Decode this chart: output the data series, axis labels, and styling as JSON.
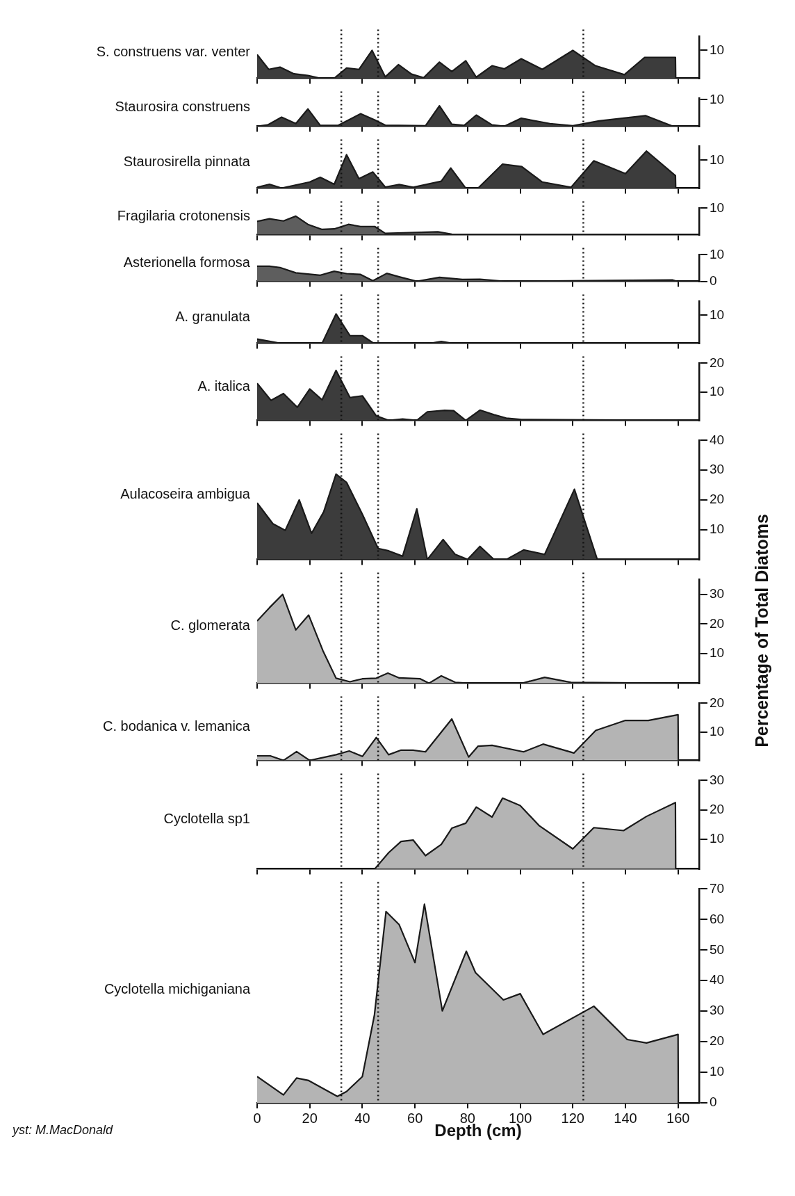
{
  "chart_data": [
    {
      "type": "area",
      "title": "S. construens var. venter",
      "x": [
        0,
        4.4,
        8.7,
        14,
        19.3,
        24,
        29.3,
        34,
        38.7,
        43.7,
        48.7,
        53.7,
        58.7,
        63.3,
        69.3,
        74,
        79.3,
        83.3,
        89.3,
        94,
        100.4,
        108.4,
        120,
        128.6,
        139.6,
        147.3,
        159,
        159.1
      ],
      "values": [
        8.5,
        3.2,
        4,
        1.6,
        1,
        0,
        0,
        3.7,
        3.2,
        10,
        0.5,
        4.9,
        1.5,
        0.2,
        5.8,
        2.4,
        6.3,
        0.4,
        4.5,
        3.4,
        7,
        3.2,
        10,
        4.5,
        1.3,
        7.5,
        7.5,
        0
      ],
      "color": "#3c3c3c",
      "xlim": [
        0,
        168
      ],
      "xticks": [
        {
          "value": 0,
          "label": null
        },
        {
          "value": 20,
          "label": null
        },
        {
          "value": 40,
          "label": null
        },
        {
          "value": 60,
          "label": null
        },
        {
          "value": 80,
          "label": null
        },
        {
          "value": 100,
          "label": null
        },
        {
          "value": 120,
          "label": null
        },
        {
          "value": 140,
          "label": null
        },
        {
          "value": 160,
          "label": null
        }
      ],
      "ylim": [
        0,
        15
      ],
      "yticks": [
        10
      ],
      "tick_labels": "y",
      "ref_lines": [
        {
          "axis": "x",
          "value": 32,
          "line_style": "dotted"
        },
        {
          "axis": "x",
          "value": 46,
          "line_style": "dotted"
        },
        {
          "axis": "x",
          "value": 124,
          "line_style": "dotted"
        }
      ]
    },
    {
      "type": "area",
      "title": "Staurosira construens",
      "x": [
        0,
        4,
        9.3,
        14.7,
        19.3,
        24,
        30.7,
        39.3,
        44.7,
        48.7,
        64,
        69.3,
        74,
        78.7,
        83.3,
        89.3,
        94,
        100.4,
        111.3,
        120,
        130,
        147.6,
        158,
        160
      ],
      "values": [
        0,
        0.5,
        3.4,
        1,
        6.5,
        0.3,
        0.3,
        4.7,
        2.4,
        0.4,
        0.2,
        7.7,
        0.8,
        0.3,
        4.2,
        0.5,
        0,
        3,
        1,
        0.2,
        2,
        4,
        0,
        0
      ],
      "color": "#3c3c3c",
      "xlim": [
        0,
        168
      ],
      "xticks": [
        {
          "value": 0,
          "label": null
        },
        {
          "value": 20,
          "label": null
        },
        {
          "value": 40,
          "label": null
        },
        {
          "value": 60,
          "label": null
        },
        {
          "value": 80,
          "label": null
        },
        {
          "value": 100,
          "label": null
        },
        {
          "value": 120,
          "label": null
        },
        {
          "value": 140,
          "label": null
        },
        {
          "value": 160,
          "label": null
        }
      ],
      "ylim": [
        0,
        10.5
      ],
      "yticks": [
        10
      ],
      "tick_labels": "y",
      "ref_lines": [
        {
          "axis": "x",
          "value": 32,
          "line_style": "dotted"
        },
        {
          "axis": "x",
          "value": 46,
          "line_style": "dotted"
        },
        {
          "axis": "x",
          "value": 124,
          "line_style": "dotted"
        }
      ]
    },
    {
      "type": "area",
      "title": "Staurosirella pinnata",
      "x": [
        0,
        4.7,
        9.3,
        20,
        24,
        29.3,
        34,
        38.7,
        44,
        48.7,
        54,
        59.3,
        70,
        73.6,
        79.3,
        84,
        93.3,
        100.6,
        108.4,
        119.3,
        128,
        140,
        148,
        159,
        159.1
      ],
      "values": [
        0.3,
        1.4,
        0,
        2.2,
        3.9,
        1.4,
        12,
        3.4,
        5.8,
        0.4,
        1.3,
        0.3,
        2.5,
        7.2,
        0,
        0,
        8.6,
        7.7,
        2.2,
        0.3,
        9.8,
        5.2,
        13.3,
        4.5,
        0
      ],
      "color": "#3c3c3c",
      "xlim": [
        0,
        168
      ],
      "xticks": [
        {
          "value": 0,
          "label": null
        },
        {
          "value": 20,
          "label": null
        },
        {
          "value": 40,
          "label": null
        },
        {
          "value": 60,
          "label": null
        },
        {
          "value": 80,
          "label": null
        },
        {
          "value": 100,
          "label": null
        },
        {
          "value": 120,
          "label": null
        },
        {
          "value": 140,
          "label": null
        },
        {
          "value": 160,
          "label": null
        }
      ],
      "ylim": [
        0,
        15
      ],
      "yticks": [
        10
      ],
      "tick_labels": "y",
      "ref_lines": [
        {
          "axis": "x",
          "value": 32,
          "line_style": "dotted"
        },
        {
          "axis": "x",
          "value": 46,
          "line_style": "dotted"
        },
        {
          "axis": "x",
          "value": 124,
          "line_style": "dotted"
        }
      ]
    },
    {
      "type": "area",
      "title": "Fragilaria crotonensis",
      "x": [
        0,
        4.7,
        10,
        14.7,
        19.3,
        24.7,
        29.3,
        34.7,
        39.3,
        44.7,
        48.7,
        58,
        68.7,
        74,
        160
      ],
      "values": [
        5,
        6,
        5.2,
        7,
        3.9,
        2,
        2.2,
        3.9,
        3.1,
        3.1,
        0.5,
        0.8,
        1.1,
        0.2,
        0
      ],
      "color": "#5e5e5e",
      "xlim": [
        0,
        168
      ],
      "xticks": [
        {
          "value": 0,
          "label": null
        },
        {
          "value": 20,
          "label": null
        },
        {
          "value": 40,
          "label": null
        },
        {
          "value": 60,
          "label": null
        },
        {
          "value": 80,
          "label": null
        },
        {
          "value": 100,
          "label": null
        },
        {
          "value": 120,
          "label": null
        },
        {
          "value": 140,
          "label": null
        },
        {
          "value": 160,
          "label": null
        }
      ],
      "ylim": [
        0,
        10
      ],
      "yticks": [
        10
      ],
      "tick_labels": "y",
      "ref_lines": [
        {
          "axis": "x",
          "value": 32,
          "line_style": "dotted"
        },
        {
          "axis": "x",
          "value": 46,
          "line_style": "dotted"
        },
        {
          "axis": "x",
          "value": 124,
          "line_style": "dotted"
        }
      ]
    },
    {
      "type": "area",
      "title": "Asterionella formosa",
      "x": [
        0,
        4.7,
        8.7,
        14.7,
        24,
        29.3,
        34,
        39.3,
        44,
        49.3,
        54,
        60.7,
        69.3,
        78,
        84.7,
        94,
        158,
        159.6
      ],
      "values": [
        5.7,
        5.7,
        5.2,
        3.2,
        2.3,
        3.8,
        2.9,
        2.6,
        0.2,
        3,
        1.7,
        0,
        1.5,
        0.7,
        0.8,
        0,
        0.5,
        0
      ],
      "color": "#5e5e5e",
      "xlim": [
        0,
        168
      ],
      "xticks": [
        {
          "value": 0,
          "label": null
        },
        {
          "value": 20,
          "label": null
        },
        {
          "value": 40,
          "label": null
        },
        {
          "value": 60,
          "label": null
        },
        {
          "value": 80,
          "label": null
        },
        {
          "value": 100,
          "label": null
        },
        {
          "value": 120,
          "label": null
        },
        {
          "value": 140,
          "label": null
        },
        {
          "value": 160,
          "label": null
        }
      ],
      "ylim": [
        0,
        10
      ],
      "yticks": [
        0,
        10
      ],
      "tick_labels": "y",
      "ref_lines": [
        {
          "axis": "x",
          "value": 32,
          "line_style": "dotted"
        },
        {
          "axis": "x",
          "value": 46,
          "line_style": "dotted"
        },
        {
          "axis": "x",
          "value": 124,
          "line_style": "dotted"
        }
      ]
    },
    {
      "type": "area",
      "title": "A. granulata",
      "x": [
        0,
        8.7,
        24.7,
        30,
        35.3,
        40,
        44,
        66,
        70,
        74,
        160
      ],
      "values": [
        1.5,
        0,
        0,
        10.5,
        2.7,
        2.7,
        0.2,
        0,
        0.6,
        0,
        0
      ],
      "color": "#3c3c3c",
      "xlim": [
        0,
        168
      ],
      "xticks": [
        {
          "value": 0,
          "label": null
        },
        {
          "value": 20,
          "label": null
        },
        {
          "value": 40,
          "label": null
        },
        {
          "value": 60,
          "label": null
        },
        {
          "value": 80,
          "label": null
        },
        {
          "value": 100,
          "label": null
        },
        {
          "value": 120,
          "label": null
        },
        {
          "value": 140,
          "label": null
        },
        {
          "value": 160,
          "label": null
        }
      ],
      "ylim": [
        0,
        15
      ],
      "yticks": [
        10
      ],
      "tick_labels": "y",
      "ref_lines": [
        {
          "axis": "x",
          "value": 32,
          "line_style": "dotted"
        },
        {
          "axis": "x",
          "value": 46,
          "line_style": "dotted"
        },
        {
          "axis": "x",
          "value": 124,
          "line_style": "dotted"
        }
      ]
    },
    {
      "type": "area",
      "title": "A. italica",
      "x": [
        0,
        5.3,
        10,
        15.3,
        20,
        24.7,
        30,
        35.3,
        40,
        45.3,
        50,
        55.3,
        60.7,
        64.7,
        71.3,
        74.7,
        79.3,
        84.7,
        90,
        94.7,
        100.6,
        160
      ],
      "values": [
        13,
        7,
        9.4,
        4.6,
        11,
        7.2,
        17.5,
        8,
        8.6,
        1.6,
        0,
        0.5,
        0,
        3,
        3.5,
        3.4,
        0,
        3.6,
        2,
        0.8,
        0.3,
        0
      ],
      "color": "#3c3c3c",
      "xlim": [
        0,
        168
      ],
      "xticks": [
        {
          "value": 0,
          "label": null
        },
        {
          "value": 20,
          "label": null
        },
        {
          "value": 40,
          "label": null
        },
        {
          "value": 60,
          "label": null
        },
        {
          "value": 80,
          "label": null
        },
        {
          "value": 100,
          "label": null
        },
        {
          "value": 120,
          "label": null
        },
        {
          "value": 140,
          "label": null
        },
        {
          "value": 160,
          "label": null
        }
      ],
      "ylim": [
        0,
        20
      ],
      "yticks": [
        10,
        20
      ],
      "tick_labels": "y",
      "ref_lines": [
        {
          "axis": "x",
          "value": 32,
          "line_style": "dotted"
        },
        {
          "axis": "x",
          "value": 46,
          "line_style": "dotted"
        },
        {
          "axis": "x",
          "value": 124,
          "line_style": "dotted"
        }
      ]
    },
    {
      "type": "area",
      "title": "Aulacoseira ambigua",
      "x": [
        0,
        6,
        10.7,
        16,
        20.7,
        25.3,
        30,
        34,
        40,
        46,
        50,
        55.3,
        60.7,
        64.7,
        70.7,
        75.3,
        80,
        84.7,
        90,
        94.7,
        101.3,
        109.3,
        120.6,
        129.3,
        160
      ],
      "values": [
        19,
        12,
        9.8,
        20,
        8.8,
        16,
        28.7,
        25.9,
        15.2,
        3.7,
        2.9,
        1.1,
        17,
        0,
        6.7,
        1.7,
        0,
        4.4,
        0,
        0,
        3.2,
        1.7,
        23.6,
        0,
        0
      ],
      "color": "#3c3c3c",
      "xlim": [
        0,
        168
      ],
      "xticks": [
        {
          "value": 0,
          "label": null
        },
        {
          "value": 20,
          "label": null
        },
        {
          "value": 40,
          "label": null
        },
        {
          "value": 60,
          "label": null
        },
        {
          "value": 80,
          "label": null
        },
        {
          "value": 100,
          "label": null
        },
        {
          "value": 120,
          "label": null
        },
        {
          "value": 140,
          "label": null
        },
        {
          "value": 160,
          "label": null
        }
      ],
      "ylim": [
        0,
        40
      ],
      "yticks": [
        10,
        20,
        30,
        40
      ],
      "tick_labels": "y",
      "ref_lines": [
        {
          "axis": "x",
          "value": 32,
          "line_style": "dotted"
        },
        {
          "axis": "x",
          "value": 46,
          "line_style": "dotted"
        },
        {
          "axis": "x",
          "value": 124,
          "line_style": "dotted"
        }
      ]
    },
    {
      "type": "area",
      "title": "C. glomerata",
      "ylabel": "Percentage of Total Diatoms",
      "x": [
        0,
        4.7,
        9.7,
        14.7,
        19.6,
        25,
        30,
        35.3,
        40,
        45.3,
        49.7,
        54,
        62,
        65.3,
        70,
        75.3,
        80.7,
        100.7,
        109.3,
        119.3,
        160
      ],
      "values": [
        21,
        25.5,
        30,
        18,
        23,
        11,
        1.7,
        0.5,
        1.5,
        1.7,
        3.4,
        1.8,
        1.5,
        0,
        2.5,
        0.3,
        0,
        0,
        2,
        0.3,
        0
      ],
      "color": "#b4b4b4",
      "xlim": [
        0,
        168
      ],
      "xticks": [
        {
          "value": 0,
          "label": null
        },
        {
          "value": 20,
          "label": null
        },
        {
          "value": 40,
          "label": null
        },
        {
          "value": 60,
          "label": null
        },
        {
          "value": 80,
          "label": null
        },
        {
          "value": 100,
          "label": null
        },
        {
          "value": 120,
          "label": null
        },
        {
          "value": 140,
          "label": null
        },
        {
          "value": 160,
          "label": null
        }
      ],
      "ylim": [
        0,
        35
      ],
      "yticks": [
        10,
        20,
        30
      ],
      "tick_labels": "y",
      "ref_lines": [
        {
          "axis": "x",
          "value": 32,
          "line_style": "dotted"
        },
        {
          "axis": "x",
          "value": 46,
          "line_style": "dotted"
        },
        {
          "axis": "x",
          "value": 124,
          "line_style": "dotted"
        }
      ]
    },
    {
      "type": "area",
      "title": "C. bodanica v. lemanica",
      "x": [
        0,
        5,
        10,
        15,
        20,
        30,
        35,
        40,
        45.3,
        50,
        54.7,
        59.3,
        64,
        74,
        80.4,
        84,
        89.3,
        101.3,
        108.7,
        120.4,
        128.7,
        140,
        148.7,
        160,
        160.1
      ],
      "values": [
        1.6,
        1.6,
        0,
        3.1,
        0,
        2,
        3.3,
        1.4,
        8,
        2,
        3.6,
        3.6,
        3,
        14.5,
        1.2,
        5,
        5.3,
        3,
        5.7,
        2.6,
        10.5,
        14,
        14,
        16,
        0
      ],
      "color": "#b4b4b4",
      "xlim": [
        0,
        168
      ],
      "xticks": [
        {
          "value": 0,
          "label": null
        },
        {
          "value": 20,
          "label": null
        },
        {
          "value": 40,
          "label": null
        },
        {
          "value": 60,
          "label": null
        },
        {
          "value": 80,
          "label": null
        },
        {
          "value": 100,
          "label": null
        },
        {
          "value": 120,
          "label": null
        },
        {
          "value": 140,
          "label": null
        },
        {
          "value": 160,
          "label": null
        }
      ],
      "ylim": [
        0,
        20
      ],
      "yticks": [
        10,
        20
      ],
      "tick_labels": "y",
      "ref_lines": [
        {
          "axis": "x",
          "value": 32,
          "line_style": "dotted"
        },
        {
          "axis": "x",
          "value": 46,
          "line_style": "dotted"
        },
        {
          "axis": "x",
          "value": 124,
          "line_style": "dotted"
        }
      ]
    },
    {
      "type": "area",
      "title": "Cyclotella sp1",
      "x": [
        0,
        44.7,
        50,
        54.7,
        59.3,
        64,
        70,
        74,
        79.3,
        83.3,
        89.3,
        93.3,
        100,
        107.3,
        120,
        128,
        139.3,
        148,
        159,
        159.1
      ],
      "values": [
        0,
        0,
        5.5,
        9.3,
        9.8,
        4.5,
        8.3,
        13.8,
        15.5,
        21,
        17.6,
        24,
        21.5,
        14.6,
        6.8,
        14,
        13,
        17.8,
        22.5,
        0
      ],
      "color": "#b4b4b4",
      "xlim": [
        0,
        168
      ],
      "xticks": [
        {
          "value": 0,
          "label": null
        },
        {
          "value": 20,
          "label": null
        },
        {
          "value": 40,
          "label": null
        },
        {
          "value": 60,
          "label": null
        },
        {
          "value": 80,
          "label": null
        },
        {
          "value": 100,
          "label": null
        },
        {
          "value": 120,
          "label": null
        },
        {
          "value": 140,
          "label": null
        },
        {
          "value": 160,
          "label": null
        }
      ],
      "ylim": [
        0,
        30
      ],
      "yticks": [
        10,
        20,
        30
      ],
      "tick_labels": "y",
      "ref_lines": [
        {
          "axis": "x",
          "value": 32,
          "line_style": "dotted"
        },
        {
          "axis": "x",
          "value": 46,
          "line_style": "dotted"
        },
        {
          "axis": "x",
          "value": 124,
          "line_style": "dotted"
        }
      ]
    },
    {
      "type": "area",
      "title": "Cyclotella michiganiana",
      "xlabel": "Depth (cm)",
      "annotations": [
        "yst: M.MacDonald"
      ],
      "x": [
        0,
        10,
        15,
        19.6,
        30.5,
        34,
        40,
        44.6,
        49,
        54,
        60,
        63.6,
        70.4,
        79.5,
        83,
        93.6,
        100,
        108.7,
        128,
        140.7,
        148,
        160,
        160.1
      ],
      "values": [
        8.6,
        2.6,
        8.1,
        7.3,
        2.1,
        3.7,
        8.6,
        28.8,
        62.6,
        58.3,
        45.9,
        65,
        30.1,
        49.6,
        42.6,
        33.7,
        35.7,
        22.4,
        31.6,
        20.7,
        19.6,
        22.4,
        0
      ],
      "color": "#b4b4b4",
      "xlim": [
        0,
        168
      ],
      "xticks": [
        0,
        20,
        40,
        60,
        80,
        100,
        120,
        140,
        160
      ],
      "ylim": [
        0,
        70
      ],
      "yticks": [
        0,
        10,
        20,
        30,
        40,
        50,
        60,
        70
      ],
      "ref_lines": [
        {
          "axis": "x",
          "value": 32,
          "line_style": "dotted"
        },
        {
          "axis": "x",
          "value": 46,
          "line_style": "dotted"
        },
        {
          "axis": "x",
          "value": 124,
          "line_style": "dotted"
        }
      ]
    }
  ]
}
